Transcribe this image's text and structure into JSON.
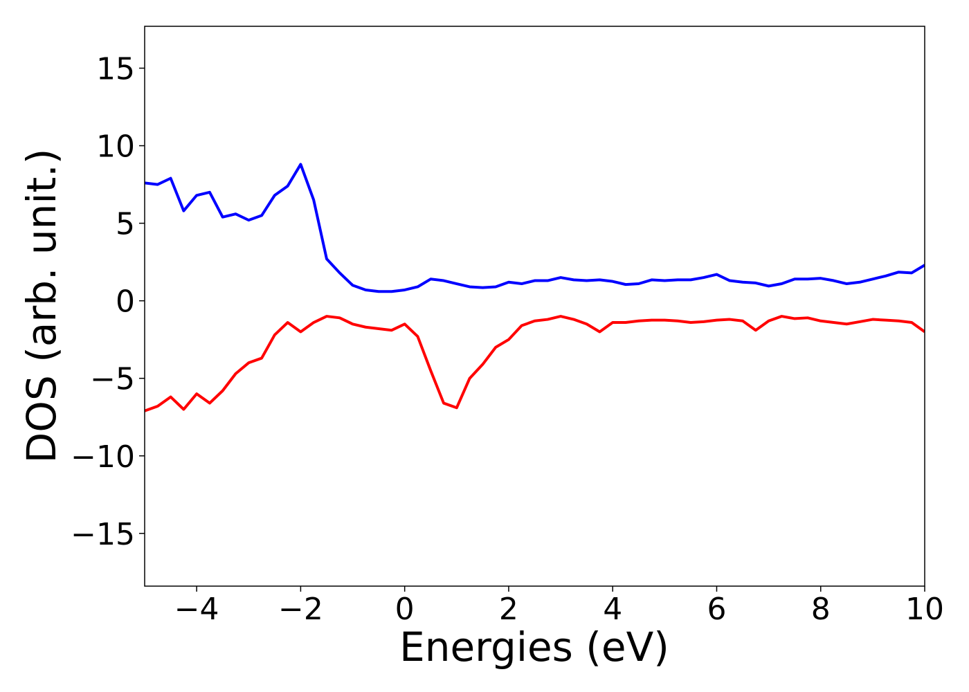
{
  "chart_data": {
    "type": "line",
    "xlabel": "Energies (eV)",
    "ylabel": "DOS (arb. unit.)",
    "x": [
      -5,
      -4.75,
      -4.5,
      -4.25,
      -4,
      -3.75,
      -3.5,
      -3.25,
      -3,
      -2.75,
      -2.5,
      -2.25,
      -2,
      -1.75,
      -1.5,
      -1.25,
      -1,
      -0.75,
      -0.5,
      -0.25,
      0,
      0.25,
      0.5,
      0.75,
      1,
      1.25,
      1.5,
      1.75,
      2,
      2.25,
      2.5,
      2.75,
      3,
      3.25,
      3.5,
      3.75,
      4,
      4.25,
      4.5,
      4.75,
      5,
      5.25,
      5.5,
      5.75,
      6,
      6.25,
      6.5,
      6.75,
      7,
      7.25,
      7.5,
      7.75,
      8,
      8.25,
      8.5,
      8.75,
      9,
      9.25,
      9.5,
      9.75,
      10
    ],
    "series": [
      {
        "color": "#0000ff",
        "values": [
          7.6,
          7.5,
          7.9,
          5.8,
          6.8,
          7.0,
          5.4,
          5.6,
          5.2,
          5.5,
          6.8,
          7.4,
          8.8,
          6.5,
          2.7,
          1.8,
          1.0,
          0.7,
          0.6,
          0.6,
          0.7,
          0.9,
          1.4,
          1.3,
          1.1,
          0.9,
          0.85,
          0.9,
          1.2,
          1.1,
          1.3,
          1.3,
          1.5,
          1.35,
          1.3,
          1.35,
          1.25,
          1.05,
          1.1,
          1.35,
          1.3,
          1.35,
          1.35,
          1.5,
          1.7,
          1.3,
          1.2,
          1.15,
          0.95,
          1.1,
          1.4,
          1.4,
          1.45,
          1.3,
          1.1,
          1.2,
          1.4,
          1.6,
          1.85,
          1.8,
          2.3
        ]
      },
      {
        "color": "#ff0000",
        "values": [
          -7.1,
          -6.8,
          -6.2,
          -7.0,
          -6.0,
          -6.6,
          -5.8,
          -4.7,
          -4.0,
          -3.7,
          -2.2,
          -1.4,
          -2.0,
          -1.4,
          -1.0,
          -1.1,
          -1.5,
          -1.7,
          -1.8,
          -1.9,
          -1.5,
          -2.3,
          -4.5,
          -6.6,
          -6.9,
          -5.0,
          -4.1,
          -3.0,
          -2.5,
          -1.6,
          -1.3,
          -1.2,
          -1.0,
          -1.2,
          -1.5,
          -2.0,
          -1.4,
          -1.4,
          -1.3,
          -1.25,
          -1.25,
          -1.3,
          -1.4,
          -1.35,
          -1.25,
          -1.2,
          -1.3,
          -1.9,
          -1.3,
          -1.0,
          -1.15,
          -1.1,
          -1.3,
          -1.4,
          -1.5,
          -1.35,
          -1.2,
          -1.25,
          -1.3,
          -1.4,
          -2.0
        ]
      }
    ],
    "xlim": [
      -5,
      10
    ],
    "ylim": [
      -18.4,
      17.7
    ],
    "xticks": [
      {
        "value": -4,
        "label": "−4"
      },
      {
        "value": -2,
        "label": "−2"
      },
      0,
      2,
      4,
      6,
      8,
      10
    ],
    "yticks": [
      {
        "value": -15,
        "label": "−15"
      },
      {
        "value": -10,
        "label": "−10"
      },
      {
        "value": -5,
        "label": "−5"
      },
      0,
      5,
      10,
      15
    ],
    "grid": false
  }
}
